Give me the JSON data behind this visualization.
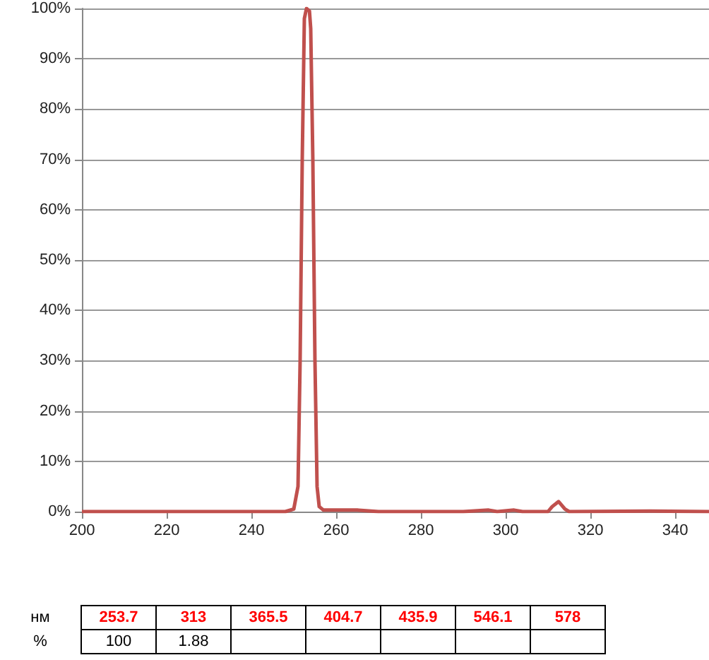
{
  "chart_data": [
    {
      "type": "line",
      "x": [
        200,
        230,
        248,
        250,
        251,
        251.5,
        252,
        252.5,
        253,
        253.7,
        254,
        254.5,
        255,
        255.5,
        256,
        257,
        265,
        270,
        290,
        296,
        298,
        302,
        304,
        310,
        311,
        312.5,
        314,
        315,
        334,
        348
      ],
      "series": [
        {
          "color": "#c0504d",
          "values": [
            0,
            0,
            0,
            0.5,
            5,
            30,
            70,
            98,
            100,
            99.5,
            96,
            70,
            30,
            5,
            1,
            0.3,
            0.3,
            0,
            0,
            0.3,
            0,
            0.3,
            0,
            0,
            1,
            2,
            0.5,
            0,
            0.1,
            0
          ]
        }
      ],
      "xlim": [
        200,
        348
      ],
      "xticks": [
        200,
        220,
        240,
        260,
        280,
        300,
        320,
        340
      ],
      "ylim": [
        0,
        100
      ],
      "yticks": [
        {
          "value": 0,
          "label": "0%"
        },
        {
          "value": 10,
          "label": "10%"
        },
        {
          "value": 20,
          "label": "20%"
        },
        {
          "value": 30,
          "label": "30%"
        },
        {
          "value": 40,
          "label": "40%"
        },
        {
          "value": 50,
          "label": "50%"
        },
        {
          "value": 60,
          "label": "60%"
        },
        {
          "value": 70,
          "label": "70%"
        },
        {
          "value": 80,
          "label": "80%"
        },
        {
          "value": 90,
          "label": "90%"
        },
        {
          "value": 100,
          "label": "100%"
        }
      ],
      "grid": "y",
      "marker": "none",
      "line_style": "solid"
    },
    {
      "type": "other",
      "xlabel": "нм",
      "ylabel": "%",
      "categories": [
        "253.7",
        "313",
        "365.5",
        "404.7",
        "435.9",
        "546.1",
        "578"
      ],
      "color": "#ff0000",
      "values": [
        100,
        1.88,
        null,
        null,
        null,
        null,
        null
      ],
      "data_labels": true
    }
  ]
}
